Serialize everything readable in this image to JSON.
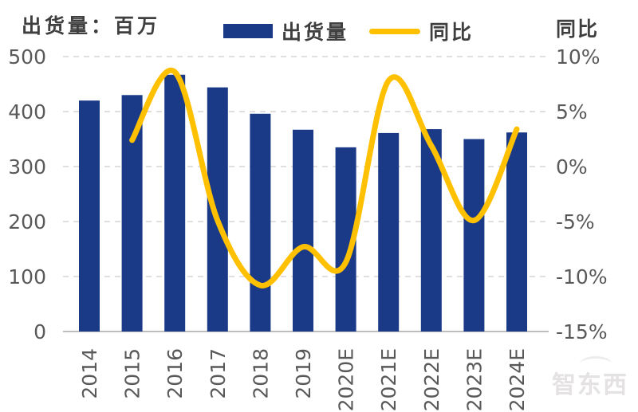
{
  "titles": {
    "left_axis": "出货量：百万",
    "right_axis": "同比"
  },
  "legend": {
    "bar_label": "出货量",
    "line_label": "同比"
  },
  "watermark": "智东西",
  "colors": {
    "bar": "#1a3a87",
    "line": "#ffc000",
    "grid": "#d6d3d3",
    "axis_line": "#bfbcbc",
    "tick_text": "#595959",
    "title_text": "#3f3f3f"
  },
  "chart_data": {
    "type": "bar",
    "subtype": "bar+line combo, smoothed line on secondary axis",
    "title": "",
    "categories": [
      "2014",
      "2015",
      "2016",
      "2017",
      "2018",
      "2019",
      "2020E",
      "2021E",
      "2022E",
      "2023E",
      "2024E"
    ],
    "series": [
      {
        "name": "出货量",
        "type": "bar",
        "axis": "left",
        "color": "#1a3a87",
        "values": [
          420,
          430,
          467,
          444,
          396,
          367,
          335,
          361,
          368,
          350,
          362
        ]
      },
      {
        "name": "同比",
        "type": "line",
        "axis": "right",
        "color": "#ffc000",
        "values": [
          null,
          2.4,
          8.6,
          -4.9,
          -10.8,
          -7.3,
          -8.7,
          7.8,
          1.9,
          -4.9,
          3.4
        ]
      }
    ],
    "left_axis": {
      "title": "出货量：百万",
      "unit": "百万",
      "min": 0,
      "max": 500,
      "tick_interval": 100,
      "tick_labels": [
        "500",
        "400",
        "300",
        "200",
        "100",
        "0"
      ],
      "tick_values": [
        500,
        400,
        300,
        200,
        100,
        0
      ]
    },
    "right_axis": {
      "title": "同比",
      "min": -15,
      "max": 10,
      "tick_interval": 5,
      "tick_labels": [
        "10%",
        "5%",
        "0%",
        "-5%",
        "-10%",
        "-15%"
      ],
      "tick_values": [
        10,
        5,
        0,
        -5,
        -10,
        -15
      ]
    },
    "grid": {
      "horizontal": "dashed",
      "vertical": "none"
    },
    "legend_position": "top-center",
    "x_label_rotation": -90
  }
}
